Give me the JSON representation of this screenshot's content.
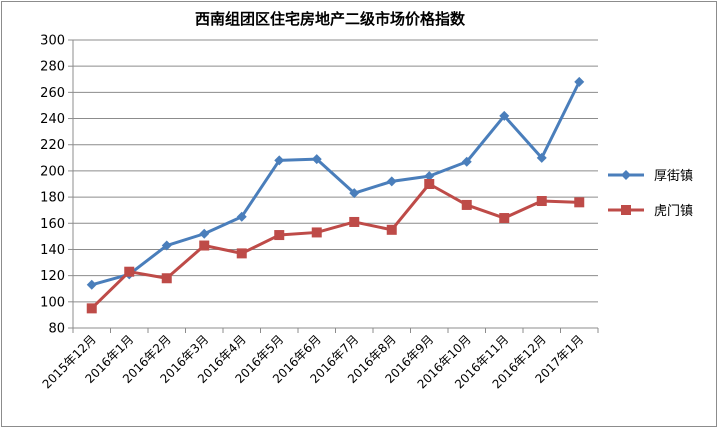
{
  "chart_data": {
    "type": "line",
    "title": "西南组团区住宅房地产二级市场价格指数",
    "xlabel": "",
    "ylabel": "",
    "ylim": [
      80,
      300
    ],
    "ytick_step": 20,
    "grid": "horizontal",
    "legend_position": "right",
    "categories": [
      "2015年12月",
      "2016年1月",
      "2016年2月",
      "2016年3月",
      "2016年4月",
      "2016年5月",
      "2016年6月",
      "2016年7月",
      "2016年8月",
      "2016年9月",
      "2016年10月",
      "2016年11月",
      "2016年12月",
      "2017年1月"
    ],
    "series": [
      {
        "name": "厚街镇",
        "color": "#4a7ebb",
        "marker": "diamond",
        "values": [
          113,
          121,
          143,
          152,
          165,
          208,
          209,
          183,
          192,
          196,
          207,
          242,
          210,
          268
        ]
      },
      {
        "name": "虎门镇",
        "color": "#be4b48",
        "marker": "square",
        "values": [
          95,
          123,
          118,
          143,
          137,
          151,
          153,
          161,
          155,
          190,
          174,
          164,
          177,
          176
        ]
      }
    ]
  }
}
